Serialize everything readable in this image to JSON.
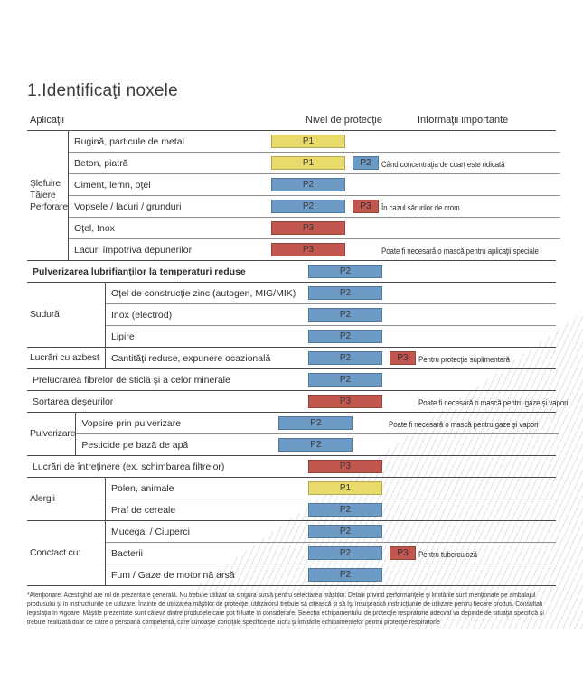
{
  "page": {
    "title": "1.Identificaţi noxele"
  },
  "table": {
    "headers": {
      "applications": "Aplicaţii",
      "protection": "Nivel de protecţie",
      "info": "Informaţii importante"
    },
    "levels": {
      "P1": "#e8da6b",
      "P2": "#6d9bc6",
      "P3": "#c1574e"
    },
    "blocks": [
      {
        "group": [
          "Şlefuire",
          "Tăiere",
          "Perforare"
        ],
        "rows": [
          {
            "label": "Rugină, particule de metal",
            "level": "P1"
          },
          {
            "label": "Beton, piatră",
            "level": "P1",
            "extra": "P2",
            "note": "Când concentraţia de cuarţ este ridicată"
          },
          {
            "label": "Ciment, lemn, oţel",
            "level": "P2"
          },
          {
            "label": "Vopsele / lacuri / grunduri",
            "level": "P2",
            "extra": "P3",
            "note": "În cazul sărurilor de crom"
          },
          {
            "label": "Oţel, Inox",
            "level": "P3"
          },
          {
            "label": "Lacuri împotriva depunerilor",
            "level": "P3",
            "note": "Poate fi necesară o mască pentru aplicaţii speciale"
          }
        ]
      },
      {
        "rows": [
          {
            "label": "Pulverizarea lubrifianţilor la temperaturi reduse",
            "level": "P2",
            "bold": true
          }
        ]
      },
      {
        "group": [
          "Sudură"
        ],
        "rows": [
          {
            "label": "Oţel de construcţie zinc (autogen, MIG/MIK)",
            "level": "P2"
          },
          {
            "label": "Inox (electrod)",
            "level": "P2"
          },
          {
            "label": "Lipire",
            "level": "P2"
          }
        ]
      },
      {
        "group": [
          "Lucrări cu azbest"
        ],
        "rows": [
          {
            "label": "Cantităţi reduse, expunere ocazională",
            "level": "P2",
            "extra": "P3",
            "note": "Pentru protecţie suplimentară"
          }
        ]
      },
      {
        "rows": [
          {
            "label": "Prelucrarea fibrelor de sticlă şi a celor minerale",
            "level": "P2"
          }
        ]
      },
      {
        "rows": [
          {
            "label": "Sortarea deşeurilor",
            "level": "P3",
            "note": "Poate fi necesară o mască pentru gaze şi vapori"
          }
        ]
      },
      {
        "group": [
          "Pulverizare"
        ],
        "rows": [
          {
            "label": "Vopsire prin pulverizare",
            "level": "P2",
            "note": "Poate fi necesară o mască pentru gaze şi vapori"
          },
          {
            "label": "Pesticide pe bază de apă",
            "level": "P2"
          }
        ]
      },
      {
        "rows": [
          {
            "label": "Lucrări de întreţinere (ex. schimbarea filtrelor)",
            "level": "P3"
          }
        ]
      },
      {
        "group": [
          "Alergii"
        ],
        "rows": [
          {
            "label": "Polen, animale",
            "level": "P1"
          },
          {
            "label": "Praf de cereale",
            "level": "P2"
          }
        ]
      },
      {
        "group": [
          "Conctact cu:"
        ],
        "rows": [
          {
            "label": "Mucegai / Ciuperci",
            "level": "P2"
          },
          {
            "label": "Bacterii",
            "level": "P2",
            "extra": "P3",
            "note": "Pentru tuberculoză"
          },
          {
            "label": "Fum / Gaze de motorină arsă",
            "level": "P2"
          }
        ]
      }
    ]
  },
  "footnote": {
    "text": "*Atenţionare: Acest ghid are rol de prezentare generală. Nu trebuie utilizat ca singura sursă pentru selectarea măştilor. Detalii privind performanţele şi limitările sunt menţionate pe ambalajul produsului şi în instrucţiunile de utilizare. Înainte de utilizarea măştilor de protecţie, utilizatorul trebuie să citească şi să îşi însuşească instrucţiunile de utilizare pentru fiecare produs. Consultaţi legislaţia în vigoare. Măştile prezentate sunt câteva dintre produsele care pot fi luate în considerare. Selecţia echipamentului de protecţie respiratorie adecvat va depinde de situaţia specifică şi trebuie realizată doar de către o persoană competentă, care cunoaşte condiţiile specifice de lucru şi limitările echipamentelor pentru protecţie respiratorie"
  }
}
